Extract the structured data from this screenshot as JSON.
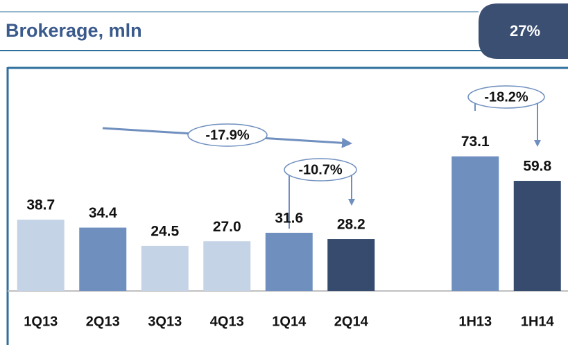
{
  "chart_data": {
    "type": "bar",
    "title": "Brokerage, mln",
    "badge": "27%",
    "categories": [
      "1Q13",
      "2Q13",
      "3Q13",
      "4Q13",
      "1Q14",
      "2Q14",
      null,
      "1H13",
      "1H14"
    ],
    "values": [
      38.7,
      34.4,
      24.5,
      27.0,
      31.6,
      28.2,
      null,
      73.1,
      59.8
    ],
    "value_labels": [
      "38.7",
      "34.4",
      "24.5",
      "27.0",
      "31.6",
      "28.2",
      null,
      "73.1",
      "59.8"
    ],
    "colors": [
      "#c5d3e6",
      "#6f8fbf",
      "#c5d3e6",
      "#c5d3e6",
      "#6f8fbf",
      "#374b6e",
      null,
      "#6f8fbf",
      "#374b6e"
    ],
    "ylim": [
      0,
      120
    ],
    "annotations": [
      "-17.9%",
      "-10.7%",
      "-18.2%"
    ]
  }
}
